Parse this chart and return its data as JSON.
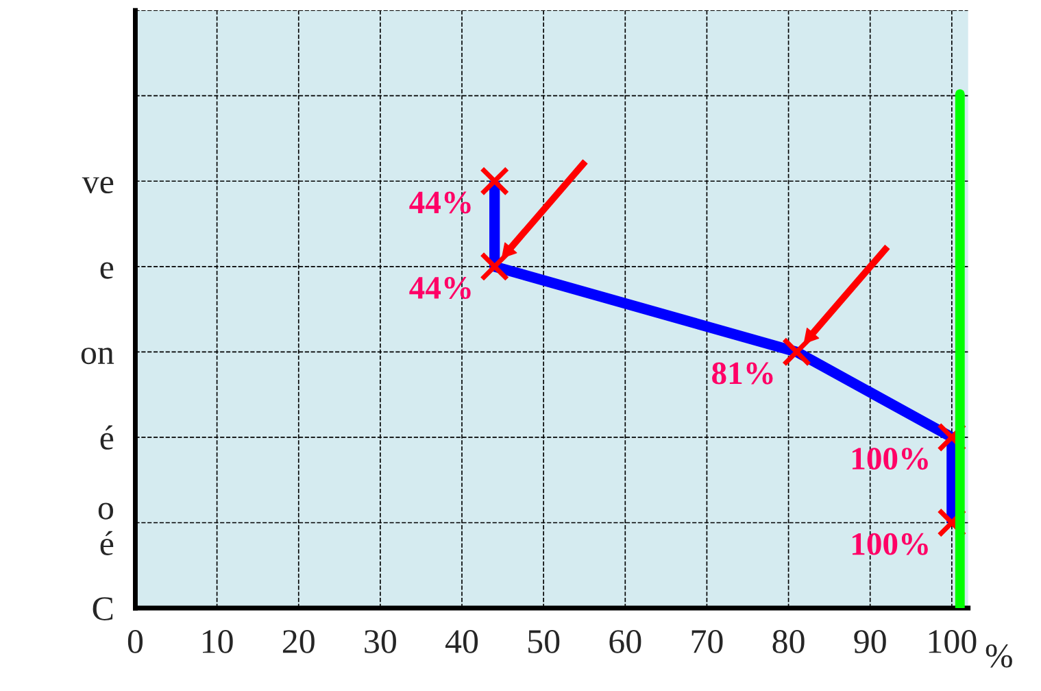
{
  "chart_data": {
    "type": "line",
    "orientation": "horizontal",
    "xlabel": "%",
    "categories": [
      null,
      null,
      "ve",
      "e",
      "on",
      "é",
      "o\né",
      "C"
    ],
    "series": [
      {
        "marker": "cross",
        "color": "#0000ff",
        "values": [
          null,
          null,
          44,
          44,
          81,
          100,
          100,
          null
        ],
        "value_labels": [
          null,
          null,
          "44%",
          "44%",
          "81%",
          "100%",
          "100%",
          null
        ]
      }
    ],
    "xlim": [
      0,
      102
    ],
    "xticks": [
      0,
      10,
      20,
      30,
      40,
      50,
      60,
      70,
      80,
      90,
      100
    ],
    "grid": true,
    "ref_lines": [
      {
        "axis": "x",
        "value": 101,
        "color": "#00ff00"
      }
    ]
  }
}
